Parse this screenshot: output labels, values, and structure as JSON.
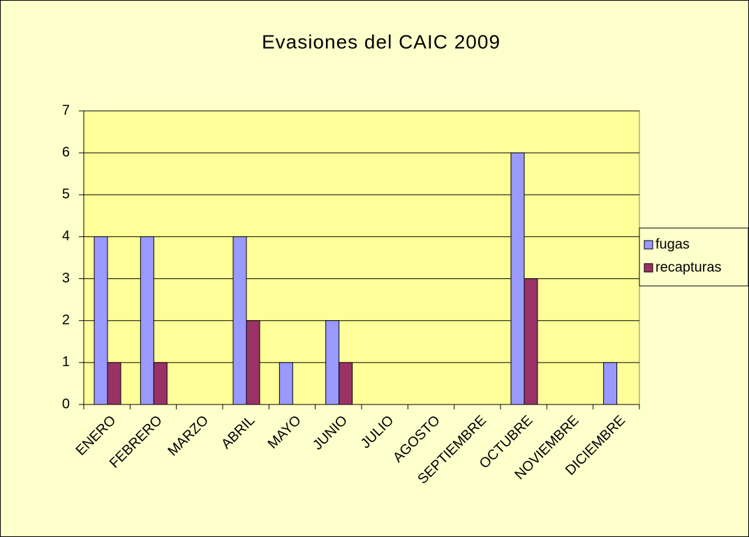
{
  "chart_data": {
    "type": "bar",
    "title": "Evasiones del CAIC 2009",
    "categories": [
      "ENERO",
      "FEBRERO",
      "MARZO",
      "ABRIL",
      "MAYO",
      "JUNIO",
      "JULIO",
      "AGOSTO",
      "SEPTIEMBRE",
      "OCTUBRE",
      "NOVIEMBRE",
      "DICIEMBRE"
    ],
    "series": [
      {
        "name": "fugas",
        "color": "#9999ff",
        "values": [
          4,
          4,
          0,
          4,
          1,
          2,
          0,
          0,
          0,
          6,
          0,
          1
        ]
      },
      {
        "name": "recapturas",
        "color": "#993366",
        "values": [
          1,
          1,
          0,
          2,
          0,
          1,
          0,
          0,
          0,
          3,
          0,
          0
        ]
      }
    ],
    "ylim": [
      0,
      7
    ],
    "yticks": [
      0,
      1,
      2,
      3,
      4,
      5,
      6,
      7
    ],
    "grid": true,
    "legend": "right"
  }
}
